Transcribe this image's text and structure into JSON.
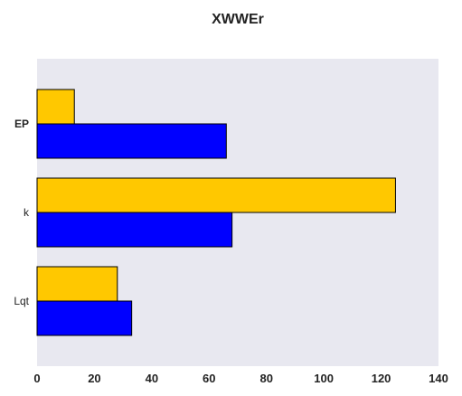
{
  "chart_data": {
    "type": "bar",
    "orientation": "horizontal",
    "title": "XWWEr",
    "xlabel": "",
    "ylabel": "",
    "categories": [
      "EP",
      "k",
      "Lqt"
    ],
    "series": [
      {
        "values": [
          13,
          125,
          28
        ],
        "color": "#FFC800"
      },
      {
        "values": [
          66,
          68,
          33
        ],
        "color": "#0000FF"
      }
    ],
    "xlim": [
      0,
      140
    ],
    "xticks": [
      0,
      20,
      40,
      60,
      80,
      100,
      120,
      140
    ],
    "grid": false,
    "background_color": "#E8E8F0",
    "edge_color": "#000000"
  }
}
